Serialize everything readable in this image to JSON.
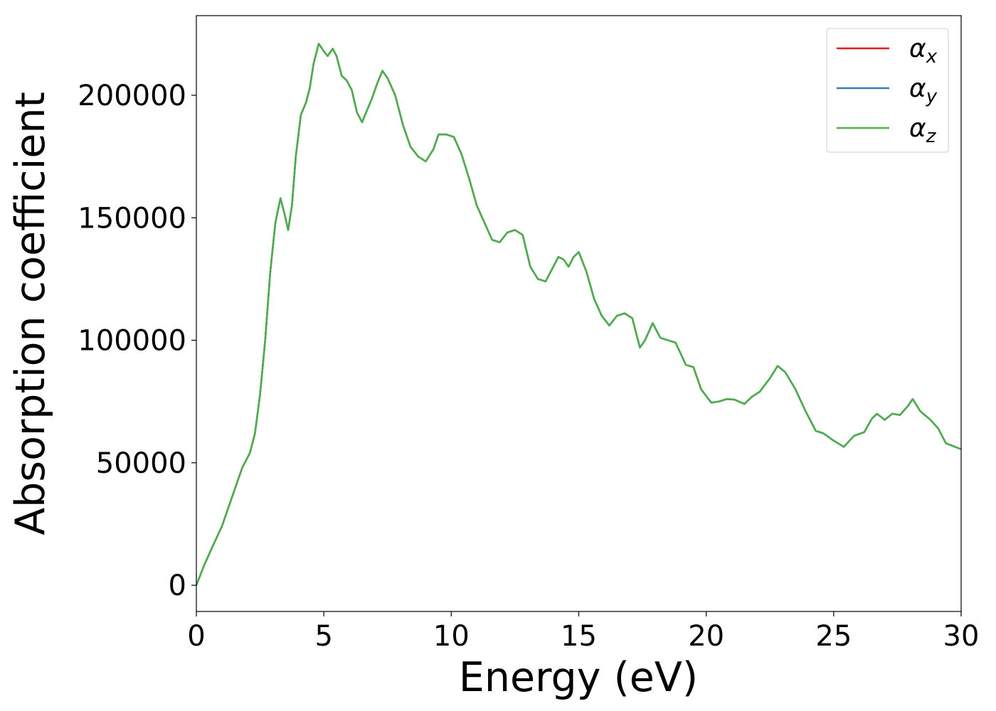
{
  "chart_data": {
    "type": "line",
    "xlabel": "Energy (eV)",
    "ylabel": "Absorption coefficient",
    "x": [
      0,
      0.3,
      0.6,
      1,
      1.4,
      1.8,
      2.1,
      2.3,
      2.5,
      2.7,
      2.9,
      3.1,
      3.3,
      3.45,
      3.6,
      3.75,
      3.9,
      4.1,
      4.3,
      4.45,
      4.6,
      4.8,
      5.0,
      5.15,
      5.35,
      5.5,
      5.7,
      5.9,
      6.1,
      6.3,
      6.5,
      6.7,
      6.9,
      7.1,
      7.3,
      7.5,
      7.8,
      8.1,
      8.4,
      8.7,
      9.0,
      9.3,
      9.5,
      9.8,
      10.1,
      10.4,
      10.7,
      11.0,
      11.3,
      11.6,
      11.9,
      12.2,
      12.5,
      12.8,
      13.1,
      13.4,
      13.7,
      14.0,
      14.2,
      14.4,
      14.6,
      14.8,
      15.0,
      15.3,
      15.6,
      15.9,
      16.2,
      16.5,
      16.8,
      17.1,
      17.4,
      17.6,
      17.9,
      18.2,
      18.5,
      18.8,
      19.2,
      19.5,
      19.8,
      20.2,
      20.5,
      20.8,
      21.1,
      21.5,
      21.8,
      22.1,
      22.5,
      22.8,
      23.1,
      23.5,
      23.9,
      24.3,
      24.6,
      25.0,
      25.4,
      25.8,
      26.2,
      26.5,
      26.7,
      27.0,
      27.3,
      27.6,
      27.9,
      28.1,
      28.4,
      28.8,
      29.1,
      29.4,
      30
    ],
    "series": [
      {
        "name": "αx",
        "color": "#e41a1c",
        "values": [
          0,
          8000,
          15000,
          24000,
          36000,
          48000,
          54000,
          62000,
          78000,
          100000,
          128000,
          148000,
          158000,
          152000,
          145000,
          155000,
          175000,
          192000,
          197000,
          203000,
          213000,
          221000,
          218000,
          216000,
          219000,
          216000,
          208000,
          206000,
          202000,
          193000,
          189000,
          194000,
          199000,
          205000,
          210000,
          207000,
          200000,
          188000,
          179000,
          175000,
          173000,
          178000,
          184000,
          184000,
          183000,
          176000,
          166000,
          155000,
          148000,
          141000,
          140000,
          144000,
          145000,
          143000,
          130000,
          125000,
          124000,
          130000,
          134000,
          133000,
          130000,
          134000,
          136000,
          128000,
          117000,
          110000,
          106000,
          110000,
          111000,
          109000,
          97000,
          100000,
          107000,
          101000,
          100000,
          99000,
          90000,
          89000,
          80000,
          74500,
          75000,
          76000,
          75800,
          74000,
          77000,
          79000,
          84500,
          89500,
          87000,
          80000,
          71000,
          63000,
          62000,
          59000,
          56500,
          61000,
          62500,
          68000,
          70000,
          67500,
          70000,
          69500,
          73000,
          76000,
          71000,
          67500,
          64000,
          58000,
          55500
        ]
      },
      {
        "name": "αy",
        "color": "#377eb8",
        "values": [
          0,
          8000,
          15000,
          24000,
          36000,
          48000,
          54000,
          62000,
          78000,
          100000,
          128000,
          148000,
          158000,
          152000,
          145000,
          155000,
          175000,
          192000,
          197000,
          203000,
          213000,
          221000,
          218000,
          216000,
          219000,
          216000,
          208000,
          206000,
          202000,
          193000,
          189000,
          194000,
          199000,
          205000,
          210000,
          207000,
          200000,
          188000,
          179000,
          175000,
          173000,
          178000,
          184000,
          184000,
          183000,
          176000,
          166000,
          155000,
          148000,
          141000,
          140000,
          144000,
          145000,
          143000,
          130000,
          125000,
          124000,
          130000,
          134000,
          133000,
          130000,
          134000,
          136000,
          128000,
          117000,
          110000,
          106000,
          110000,
          111000,
          109000,
          97000,
          100000,
          107000,
          101000,
          100000,
          99000,
          90000,
          89000,
          80000,
          74500,
          75000,
          76000,
          75800,
          74000,
          77000,
          79000,
          84500,
          89500,
          87000,
          80000,
          71000,
          63000,
          62000,
          59000,
          56500,
          61000,
          62500,
          68000,
          70000,
          67500,
          70000,
          69500,
          73000,
          76000,
          71000,
          67500,
          64000,
          58000,
          55500
        ]
      },
      {
        "name": "αz",
        "color": "#4daf4a",
        "values": [
          0,
          8000,
          15000,
          24000,
          36000,
          48000,
          54000,
          62000,
          78000,
          100000,
          128000,
          148000,
          158000,
          152000,
          145000,
          155000,
          175000,
          192000,
          197000,
          203000,
          213000,
          221000,
          218000,
          216000,
          219000,
          216000,
          208000,
          206000,
          202000,
          193000,
          189000,
          194000,
          199000,
          205000,
          210000,
          207000,
          200000,
          188000,
          179000,
          175000,
          173000,
          178000,
          184000,
          184000,
          183000,
          176000,
          166000,
          155000,
          148000,
          141000,
          140000,
          144000,
          145000,
          143000,
          130000,
          125000,
          124000,
          130000,
          134000,
          133000,
          130000,
          134000,
          136000,
          128000,
          117000,
          110000,
          106000,
          110000,
          111000,
          109000,
          97000,
          100000,
          107000,
          101000,
          100000,
          99000,
          90000,
          89000,
          80000,
          74500,
          75000,
          76000,
          75800,
          74000,
          77000,
          79000,
          84500,
          89500,
          87000,
          80000,
          71000,
          63000,
          62000,
          59000,
          56500,
          61000,
          62500,
          68000,
          70000,
          67500,
          70000,
          69500,
          73000,
          76000,
          71000,
          67500,
          64000,
          58000,
          55500
        ]
      }
    ],
    "xlim": [
      0,
      30
    ],
    "xticks": [
      0,
      5,
      10,
      15,
      20,
      25,
      30
    ],
    "ylim": [
      -10700,
      232500
    ],
    "yticks": [
      0,
      50000,
      100000,
      150000,
      200000
    ],
    "grid": false,
    "legend": "upper right"
  }
}
